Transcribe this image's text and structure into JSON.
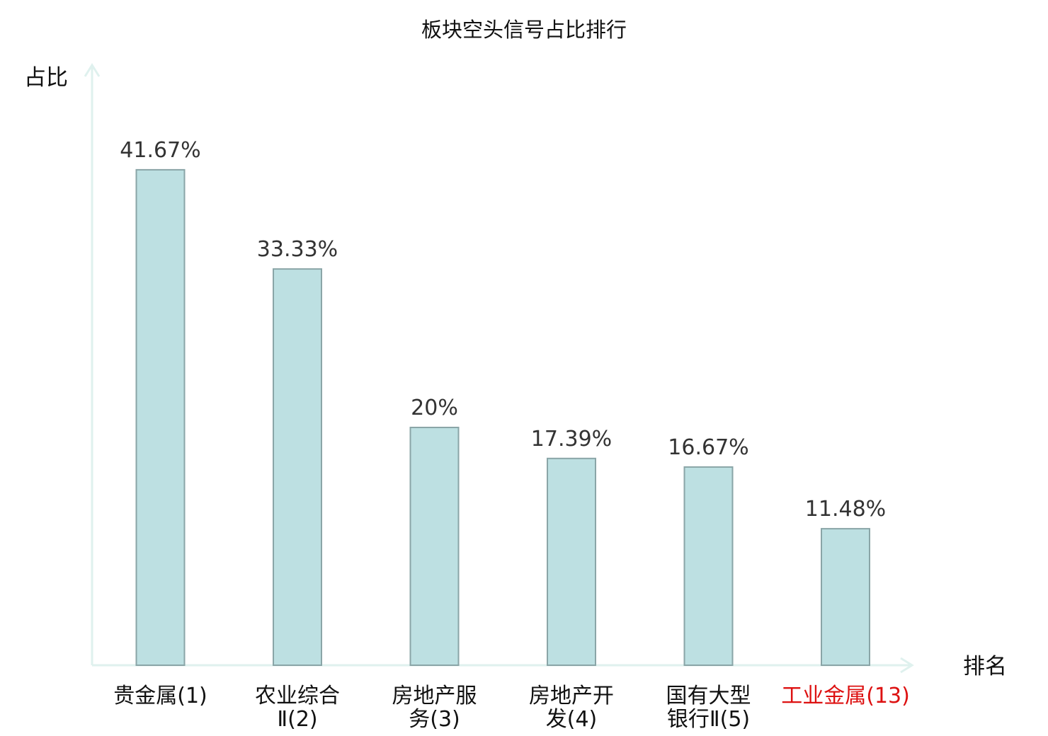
{
  "chart_data": {
    "type": "bar",
    "title": "板块空头信号占比排行",
    "ylabel": "占比",
    "xlabel": "排名",
    "categories": [
      [
        "贵金属(1)"
      ],
      [
        "农业综合",
        "Ⅱ(2)"
      ],
      [
        "房地产服",
        "务(3)"
      ],
      [
        "房地产开",
        "发(4)"
      ],
      [
        "国有大型",
        "银行Ⅱ(5)"
      ],
      [
        "工业金属(13)"
      ]
    ],
    "values": [
      41.67,
      33.33,
      20,
      17.39,
      16.67,
      11.48
    ],
    "value_labels": [
      "41.67%",
      "33.33%",
      "20%",
      "17.39%",
      "16.67%",
      "11.48%"
    ],
    "highlight_index": 5,
    "ylim": [
      0,
      50
    ],
    "grid": false,
    "legend": "none",
    "colors": {
      "bar_fill": "#bde0e2",
      "bar_stroke": "#8aa5a7",
      "axis": "#dff1ee",
      "highlight_text": "#dd1111"
    }
  }
}
